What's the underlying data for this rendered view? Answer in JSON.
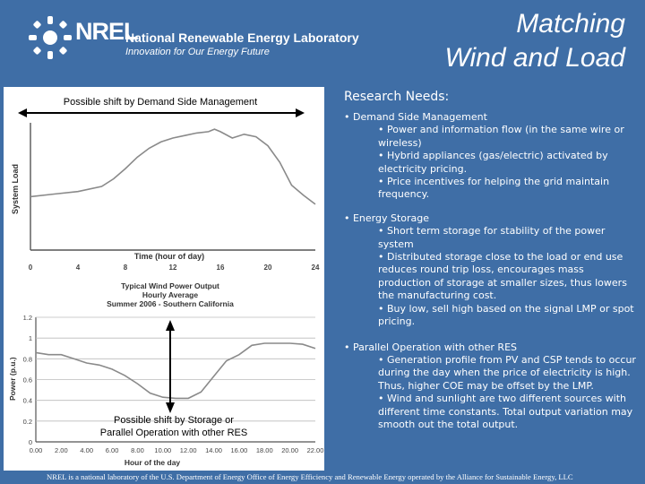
{
  "header": {
    "logo_word": "NREL",
    "lab_name": "National Renewable Energy Laboratory",
    "tagline": "Innovation for Our Energy Future",
    "title_line1": "Matching",
    "title_line2": "Wind and Load"
  },
  "figure": {
    "top_label": "Possible shift by Demand Side Management",
    "bottom_label_line1": "Possible shift by Storage or",
    "bottom_label_line2": "Parallel Operation with other RES"
  },
  "research": {
    "heading": "Research Needs:",
    "sections": [
      {
        "title": "• Demand Side Management",
        "items": [
          "• Power and information flow (in the same wire or wireless)",
          "• Hybrid appliances (gas/electric) activated by electricity pricing.",
          "• Price incentives for helping the grid maintain frequency."
        ]
      },
      {
        "title": "• Energy Storage",
        "items": [
          "• Short term storage for stability of the power system",
          "• Distributed storage close to the load or end use reduces round trip loss, encourages mass production of storage at smaller sizes, thus lowers the manufacturing cost.",
          "• Buy low, sell high based on the signal LMP or spot pricing."
        ]
      },
      {
        "title": "• Parallel Operation with other RES",
        "items": [
          "• Generation profile from PV and CSP tends to occur during the day when the price of electricity is high.  Thus, higher COE may be offset by the LMP.",
          "• Wind and sunlight are two different sources with different time constants.  Total output variation may smooth out the total output."
        ]
      }
    ]
  },
  "footer": "NREL is a national laboratory of the U.S. Department of Energy Office of Energy Efficiency and Renewable Energy operated by the Alliance for Sustainable Energy, LLC",
  "colors": {
    "background": "#3f6ea6",
    "panel": "#ffffff",
    "curve": "#8a8a8a"
  },
  "chart_data": [
    {
      "type": "line",
      "ylabel": "System Load",
      "xlabel": "Time (hour of day)",
      "x_ticks": [
        "0",
        "4",
        "8",
        "12",
        "16",
        "20",
        "24"
      ],
      "xlim": [
        0,
        24
      ],
      "ylim": [
        0,
        1
      ],
      "series": [
        {
          "x": [
            0,
            2,
            4,
            6,
            7,
            8,
            9,
            10,
            11,
            12,
            13,
            14,
            15,
            15.5,
            16,
            17,
            18,
            19,
            20,
            21,
            22,
            23,
            24
          ],
          "values": [
            0.42,
            0.44,
            0.46,
            0.5,
            0.56,
            0.64,
            0.73,
            0.8,
            0.85,
            0.88,
            0.9,
            0.92,
            0.93,
            0.95,
            0.93,
            0.88,
            0.91,
            0.89,
            0.82,
            0.69,
            0.51,
            0.43,
            0.36
          ]
        }
      ]
    },
    {
      "type": "line",
      "title": "Typical Wind Power Output",
      "subtitle": "Hourly Average",
      "subtitle2": "Summer 2006 - Southern California",
      "ylabel": "Power (p.u.)",
      "xlabel": "Hour of the day",
      "x_ticks": [
        "0.00",
        "2.00",
        "4.00",
        "6.00",
        "8.00",
        "10.00",
        "12.00",
        "14.00",
        "16.00",
        "18.00",
        "20.00",
        "22.00"
      ],
      "y_ticks": [
        "0",
        "0.2",
        "0.4",
        "0.6",
        "0.8",
        "1",
        "1.2"
      ],
      "xlim": [
        0,
        22
      ],
      "ylim": [
        0,
        1.2
      ],
      "series": [
        {
          "x": [
            0,
            1,
            2,
            3,
            4,
            5,
            6,
            7,
            8,
            9,
            10,
            11,
            12,
            13,
            14,
            15,
            16,
            17,
            18,
            19,
            20,
            21,
            22
          ],
          "values": [
            0.86,
            0.84,
            0.84,
            0.8,
            0.76,
            0.74,
            0.7,
            0.64,
            0.56,
            0.47,
            0.43,
            0.42,
            0.42,
            0.48,
            0.63,
            0.78,
            0.84,
            0.93,
            0.95,
            0.95,
            0.95,
            0.94,
            0.9
          ]
        }
      ]
    }
  ]
}
